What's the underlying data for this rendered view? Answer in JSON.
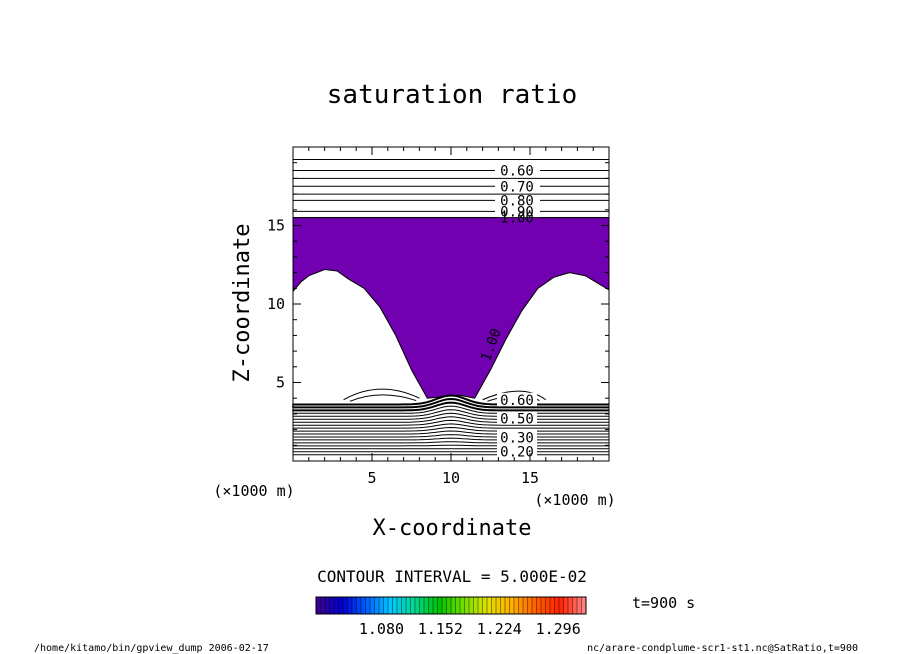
{
  "chart_data": {
    "type": "contour",
    "title": "saturation ratio",
    "xlabel": "X-coordinate",
    "ylabel": "Z-coordinate",
    "x_unit": "(×1000 m)",
    "y_unit": "(×1000 m)",
    "xlim": [
      0,
      20
    ],
    "ylim": [
      0,
      20
    ],
    "x_ticks": [
      5,
      10,
      15
    ],
    "y_ticks": [
      5,
      10,
      15
    ],
    "contour_interval_text": "CONTOUR INTERVAL = 5.000E-02",
    "time_text": "t=900 s",
    "shaded_region": {
      "threshold": 1.0,
      "color": "#7000b0"
    },
    "upper_contours": {
      "levels": [
        0.6,
        0.7,
        0.8,
        0.9,
        1.0
      ],
      "labels": [
        "0.60",
        "0.70",
        "0.80",
        "0.90",
        "1.00"
      ],
      "z_positions": [
        18.5,
        17.5,
        16.6,
        15.9,
        15.5
      ]
    },
    "lower_contours": {
      "labels": [
        "0.60",
        "0.50",
        "0.30",
        "0.20"
      ],
      "label_z": [
        3.9,
        2.7,
        1.5,
        0.6
      ],
      "z_top": 3.6,
      "z_bottom": 0.4,
      "count": 18
    },
    "curve_label": "1.00",
    "colorbar": {
      "ticks": [
        "1.080",
        "1.152",
        "1.224",
        "1.296"
      ],
      "tick_values": [
        1.08,
        1.152,
        1.224,
        1.296
      ],
      "range": [
        1.0,
        1.33
      ],
      "colors": [
        "#3a0090",
        "#0000d0",
        "#0060ff",
        "#00c8ff",
        "#00d890",
        "#00c000",
        "#70e000",
        "#e0e000",
        "#ffb000",
        "#ff6000",
        "#ff2000",
        "#ff8080"
      ]
    }
  },
  "footer": {
    "left": "/home/kitamo/bin/gpview_dump  2006-02-17",
    "right": "nc/arare-condplume-scr1-st1.nc@SatRatio,t=900"
  }
}
